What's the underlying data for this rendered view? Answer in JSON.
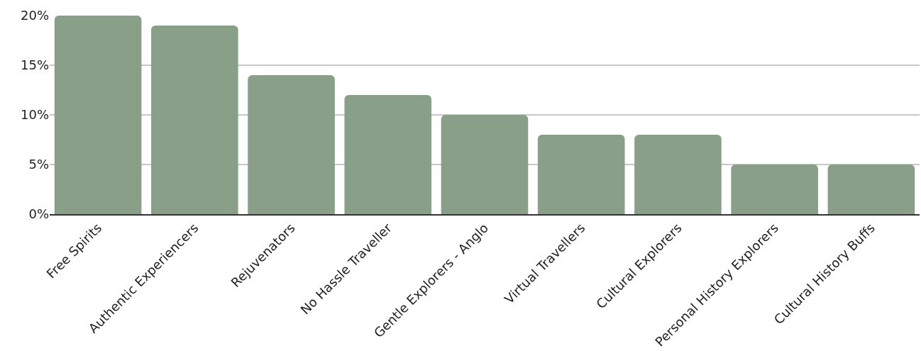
{
  "chart_data": {
    "type": "bar",
    "categories": [
      "Free Spirits",
      "Authentic Experiencers",
      "Rejuvenators",
      "No Hassle Traveller",
      "Gentle Explorers - Anglo",
      "Virtual Travellers",
      "Cultural Explorers",
      "Personal History Explorers",
      "Cultural History Buffs"
    ],
    "values": [
      20,
      19,
      14,
      12,
      10,
      8,
      8,
      5,
      5
    ],
    "color": "#8a9f88",
    "ylim": [
      0,
      20
    ],
    "yticks": [
      {
        "value": 0,
        "label": "0%"
      },
      {
        "value": 5,
        "label": "5%"
      },
      {
        "value": 10,
        "label": "10%"
      },
      {
        "value": 15,
        "label": "15%"
      },
      {
        "value": 20,
        "label": "20%"
      }
    ],
    "grid": "y"
  }
}
